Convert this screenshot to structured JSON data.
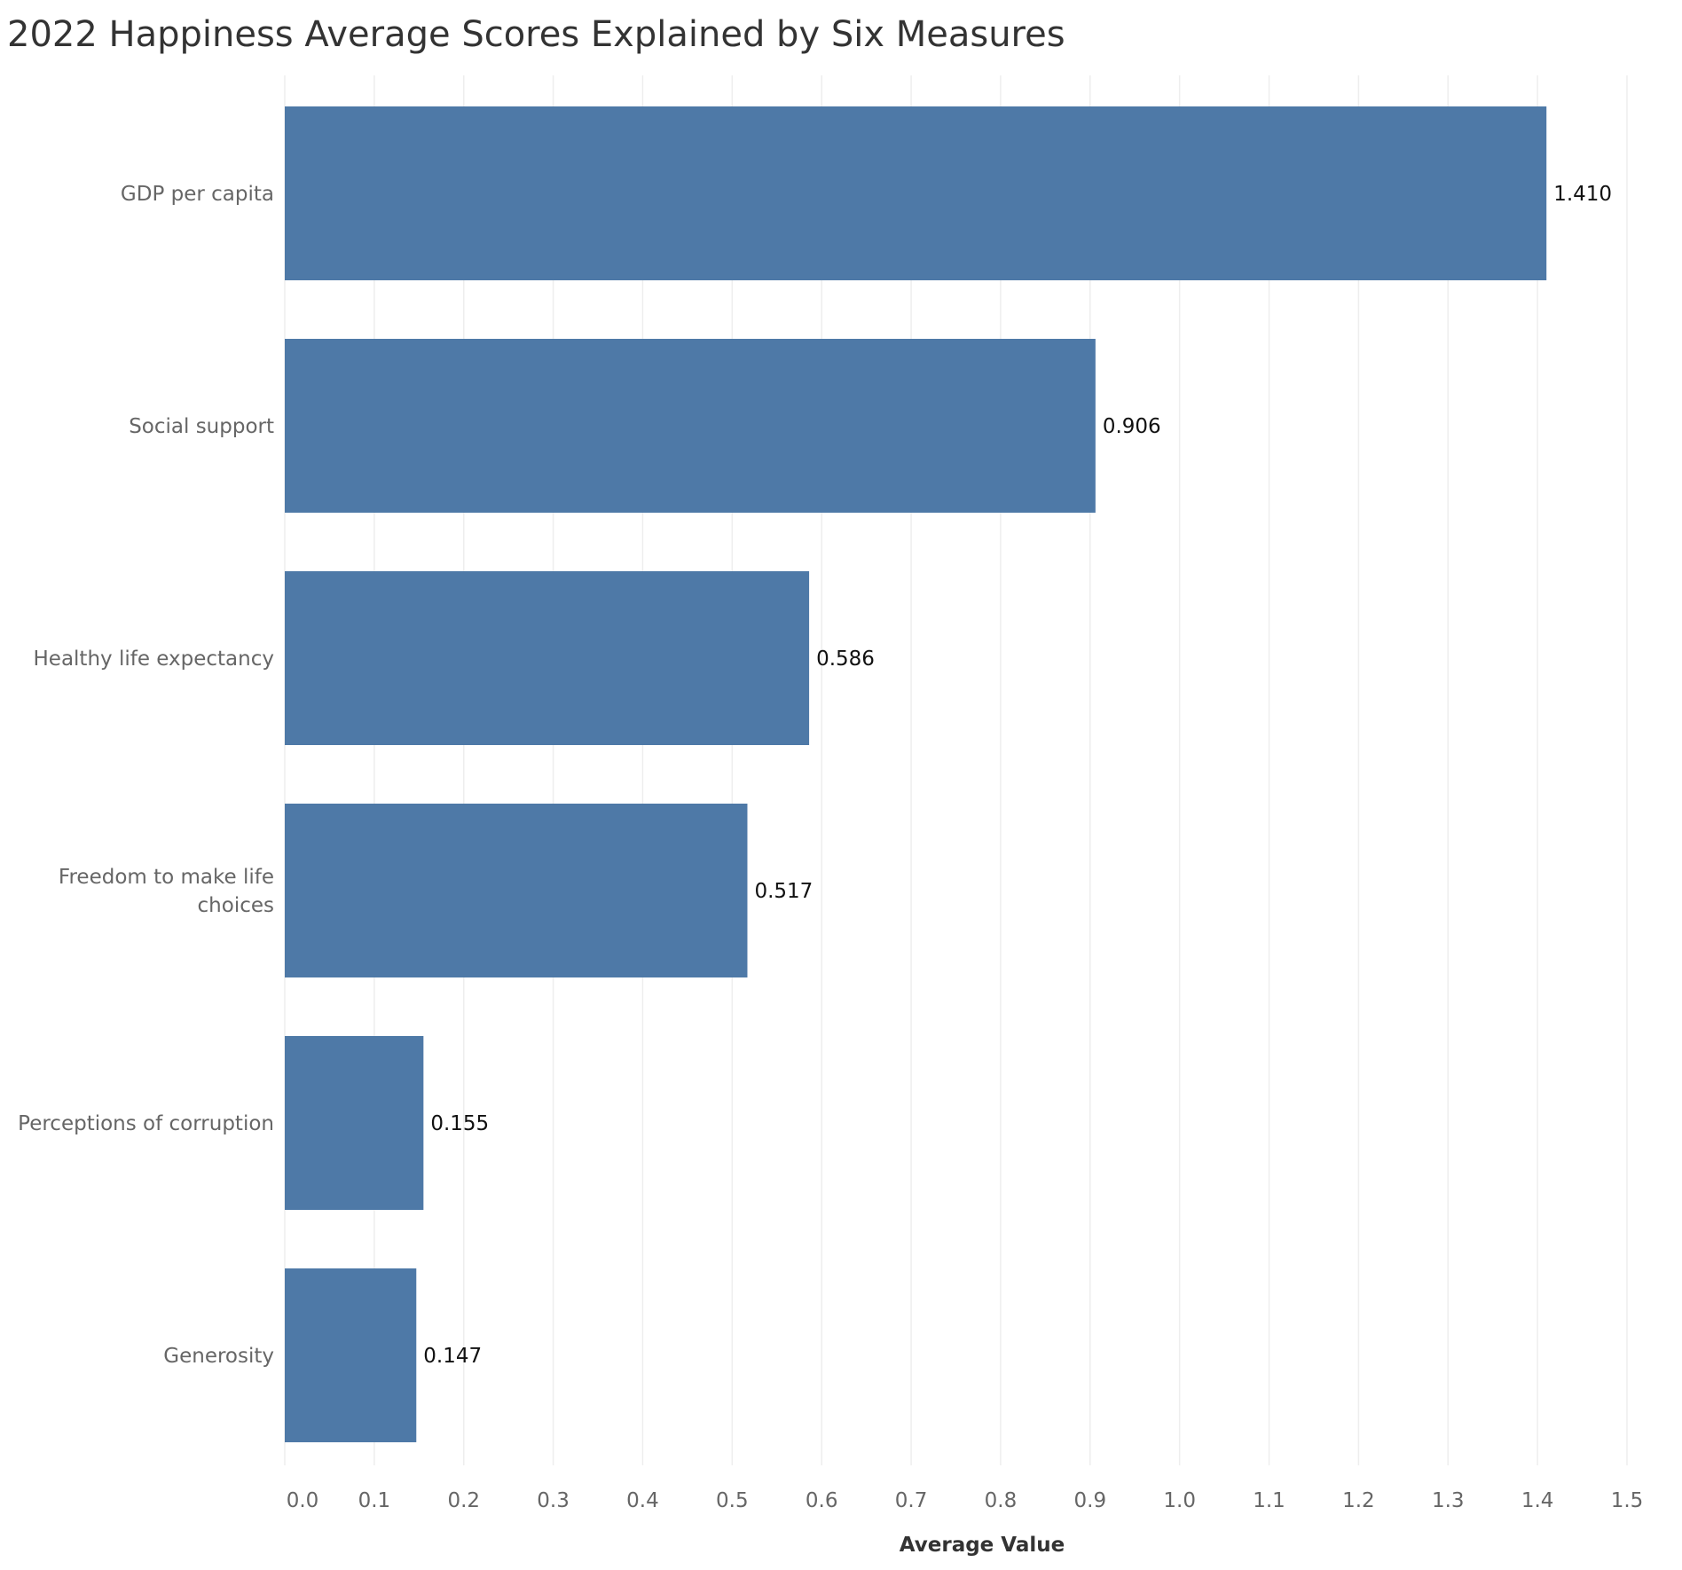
{
  "chart_data": {
    "type": "bar",
    "orientation": "horizontal",
    "title": "2022 Happiness Average Scores Explained by Six Measures",
    "xlabel": "Average Value",
    "ylabel": "",
    "categories": [
      "GDP per capita",
      "Social support",
      "Healthy life expectancy",
      "Freedom to make life choices",
      "Perceptions of corruption",
      "Generosity"
    ],
    "category_label_lines": [
      [
        "GDP per capita"
      ],
      [
        "Social support"
      ],
      [
        "Healthy life expectancy"
      ],
      [
        "Freedom to make life",
        "choices"
      ],
      [
        "Perceptions of corruption"
      ],
      [
        "Generosity"
      ]
    ],
    "values": [
      1.41,
      0.906,
      0.586,
      0.517,
      0.155,
      0.147
    ],
    "data_labels": [
      "1.410",
      "0.906",
      "0.586",
      "0.517",
      "0.155",
      "0.147"
    ],
    "xlim": [
      0,
      1.5
    ],
    "x_ticks": [
      0.0,
      0.1,
      0.2,
      0.3,
      0.4,
      0.5,
      0.6,
      0.7,
      0.8,
      0.9,
      1.0,
      1.1,
      1.2,
      1.3,
      1.4,
      1.5
    ],
    "x_tick_labels": [
      "0.0",
      "0.1",
      "0.2",
      "0.3",
      "0.4",
      "0.5",
      "0.6",
      "0.7",
      "0.8",
      "0.9",
      "1.0",
      "1.1",
      "1.2",
      "1.3",
      "1.4",
      "1.5"
    ],
    "grid": true,
    "legend": "none",
    "bar_color": "#4e79a7"
  }
}
